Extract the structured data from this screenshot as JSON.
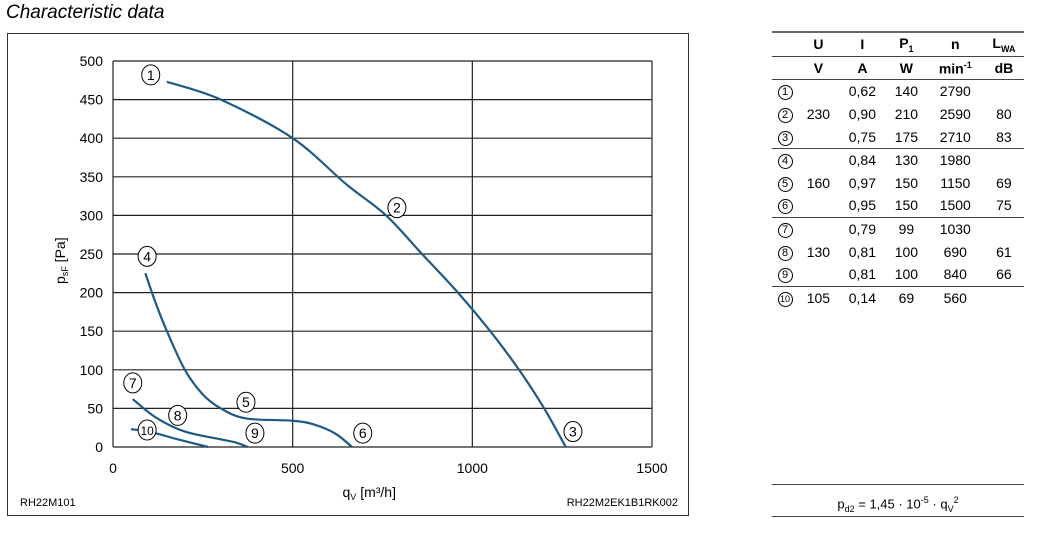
{
  "title": "Characteristic data",
  "chart_data": {
    "type": "line",
    "xlabel": "qV [m³/h]",
    "ylabel": "psF [Pa]",
    "xlim": [
      0,
      1500
    ],
    "ylim": [
      0,
      500
    ],
    "xticks": [
      0,
      500,
      1000,
      1500
    ],
    "yticks": [
      0,
      50,
      100,
      150,
      200,
      250,
      300,
      350,
      400,
      450,
      500
    ],
    "grid": true,
    "line_color": "#1f5a85",
    "series": [
      {
        "points": [
          [
            150,
            473
          ],
          [
            300,
            450
          ],
          [
            500,
            400
          ],
          [
            650,
            340
          ],
          [
            760,
            300
          ],
          [
            860,
            250
          ],
          [
            960,
            200
          ],
          [
            1050,
            150
          ],
          [
            1130,
            100
          ],
          [
            1200,
            50
          ],
          [
            1260,
            0
          ]
        ]
      },
      {
        "points": [
          [
            90,
            225
          ],
          [
            120,
            185
          ],
          [
            150,
            150
          ],
          [
            200,
            100
          ],
          [
            250,
            68
          ],
          [
            300,
            50
          ],
          [
            370,
            37
          ],
          [
            500,
            34
          ],
          [
            560,
            29
          ],
          [
            620,
            17
          ],
          [
            665,
            0
          ]
        ]
      },
      {
        "points": [
          [
            55,
            62
          ],
          [
            120,
            38
          ],
          [
            200,
            20
          ],
          [
            300,
            10
          ],
          [
            340,
            6
          ],
          [
            375,
            0
          ]
        ]
      },
      {
        "points": [
          [
            50,
            23
          ],
          [
            100,
            20
          ],
          [
            180,
            10
          ],
          [
            265,
            0
          ]
        ]
      }
    ],
    "markers": [
      {
        "label": "1",
        "x": 105,
        "y": 482
      },
      {
        "label": "2",
        "x": 790,
        "y": 310
      },
      {
        "label": "3",
        "x": 1280,
        "y": 20
      },
      {
        "label": "4",
        "x": 95,
        "y": 247
      },
      {
        "label": "5",
        "x": 370,
        "y": 58
      },
      {
        "label": "6",
        "x": 695,
        "y": 18
      },
      {
        "label": "7",
        "x": 55,
        "y": 83
      },
      {
        "label": "8",
        "x": 180,
        "y": 41
      },
      {
        "label": "9",
        "x": 395,
        "y": 18
      },
      {
        "label": "10",
        "x": 95,
        "y": 22
      }
    ],
    "footer_left": "RH22M101",
    "footer_right": "RH22M2EK1B1RK002"
  },
  "table": {
    "headers": [
      "U",
      "I",
      "P1",
      "n",
      "LWA"
    ],
    "units": [
      "V",
      "A",
      "W",
      "min-1",
      "dB"
    ],
    "rows": [
      {
        "no": "1",
        "U": "",
        "I": "0,62",
        "P": "140",
        "n": "2790",
        "L": ""
      },
      {
        "no": "2",
        "U": "230",
        "I": "0,90",
        "P": "210",
        "n": "2590",
        "L": "80"
      },
      {
        "no": "3",
        "U": "",
        "I": "0,75",
        "P": "175",
        "n": "2710",
        "L": "83"
      },
      {
        "no": "4",
        "U": "",
        "I": "0,84",
        "P": "130",
        "n": "1980",
        "L": ""
      },
      {
        "no": "5",
        "U": "160",
        "I": "0,97",
        "P": "150",
        "n": "1150",
        "L": "69"
      },
      {
        "no": "6",
        "U": "",
        "I": "0,95",
        "P": "150",
        "n": "1500",
        "L": "75"
      },
      {
        "no": "7",
        "U": "",
        "I": "0,79",
        "P": "99",
        "n": "1030",
        "L": ""
      },
      {
        "no": "8",
        "U": "130",
        "I": "0,81",
        "P": "100",
        "n": "690",
        "L": "61"
      },
      {
        "no": "9",
        "U": "",
        "I": "0,81",
        "P": "100",
        "n": "840",
        "L": "66"
      },
      {
        "no": "10",
        "U": "105",
        "I": "0,14",
        "P": "69",
        "n": "560",
        "L": ""
      }
    ]
  },
  "formula": "pd2 = 1,45 · 10-5 · qV2"
}
